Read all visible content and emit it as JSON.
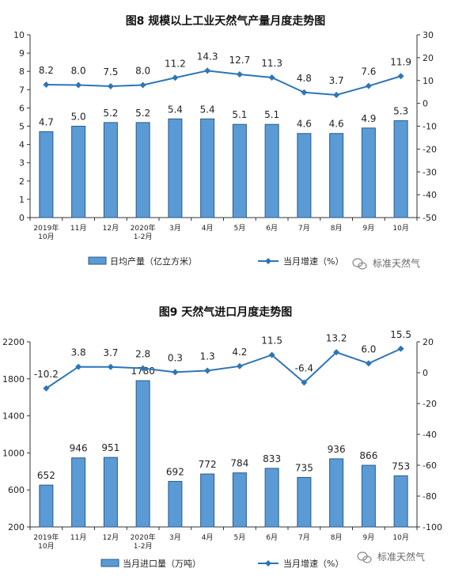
{
  "chart_data": [
    {
      "type": "bar+line",
      "title": "图8 规模以上工业天然气产量月度走势图",
      "categories": [
        [
          "2019年",
          "10月"
        ],
        [
          "11月"
        ],
        [
          "12月"
        ],
        [
          "2020年",
          "1-2月"
        ],
        [
          "3月"
        ],
        [
          "4月"
        ],
        [
          "5月"
        ],
        [
          "6月"
        ],
        [
          "7月"
        ],
        [
          "8月"
        ],
        [
          "9月"
        ],
        [
          "10月"
        ]
      ],
      "bar_series": {
        "name": "日均产量（亿立方米）",
        "values": [
          4.7,
          5.0,
          5.2,
          5.2,
          5.4,
          5.4,
          5.1,
          5.1,
          4.6,
          4.6,
          4.9,
          5.3
        ],
        "labels": [
          "4.7",
          "5.0",
          "5.2",
          "5.2",
          "5.4",
          "5.4",
          "5.1",
          "5.1",
          "4.6",
          "4.6",
          "4.9",
          "5.3"
        ]
      },
      "line_series": {
        "name": "当月增速（%）",
        "values": [
          8.2,
          8.0,
          7.5,
          8.0,
          11.2,
          14.3,
          12.7,
          11.3,
          4.8,
          3.7,
          7.6,
          11.9
        ],
        "labels": [
          "8.2",
          "8.0",
          "7.5",
          "8.0",
          "11.2",
          "14.3",
          "12.7",
          "11.3",
          "4.8",
          "3.7",
          "7.6",
          "11.9"
        ]
      },
      "y_left": {
        "min": 0,
        "max": 10,
        "ticks": [
          "0",
          "1",
          "2",
          "3",
          "4",
          "5",
          "6",
          "7",
          "8",
          "9",
          "10"
        ]
      },
      "y_right": {
        "min": -50,
        "max": 30,
        "ticks": [
          "-50",
          "-40",
          "-30",
          "-20",
          "-10",
          "0",
          "10",
          "20",
          "30"
        ]
      },
      "legend_position": "bottom",
      "watermark": "标准天然气"
    },
    {
      "type": "bar+line",
      "title": "图9 天然气进口月度走势图",
      "categories": [
        [
          "2019年",
          "10月"
        ],
        [
          "11月"
        ],
        [
          "12月"
        ],
        [
          "2020年",
          "1-2月"
        ],
        [
          "3月"
        ],
        [
          "4月"
        ],
        [
          "5月"
        ],
        [
          "6月"
        ],
        [
          "7月"
        ],
        [
          "8月"
        ],
        [
          "9月"
        ],
        [
          "10月"
        ]
      ],
      "bar_series": {
        "name": "当月进口量（万吨）",
        "values": [
          652,
          946,
          951,
          1780,
          692,
          772,
          784,
          833,
          735,
          936,
          866,
          753
        ],
        "labels": [
          "652",
          "946",
          "951",
          "1780",
          "692",
          "772",
          "784",
          "833",
          "735",
          "936",
          "866",
          "753"
        ]
      },
      "line_series": {
        "name": "当月增速（%）",
        "values": [
          -10.2,
          3.8,
          3.7,
          2.8,
          0.3,
          1.3,
          4.2,
          11.5,
          -6.4,
          13.2,
          6.0,
          15.5
        ],
        "labels": [
          "-10.2",
          "3.8",
          "3.7",
          "2.8",
          "0.3",
          "1.3",
          "4.2",
          "11.5",
          "-6.4",
          "13.2",
          "6.0",
          "15.5"
        ]
      },
      "y_left": {
        "min": 200,
        "max": 2200,
        "ticks": [
          "200",
          "600",
          "1000",
          "1400",
          "1800",
          "2200"
        ]
      },
      "y_right": {
        "min": -100,
        "max": 20,
        "ticks": [
          "-100",
          "-80",
          "-60",
          "-40",
          "-20",
          "0",
          "20"
        ]
      },
      "legend_position": "bottom",
      "watermark": "标准天然气"
    }
  ],
  "colors": {
    "bar_fill": "#5b9bd5",
    "bar_stroke": "#2b5a8a",
    "line": "#2e75b6",
    "axis": "#333333"
  },
  "icons": {
    "watermark_icon": "wechat-chat-bubble-icon"
  }
}
